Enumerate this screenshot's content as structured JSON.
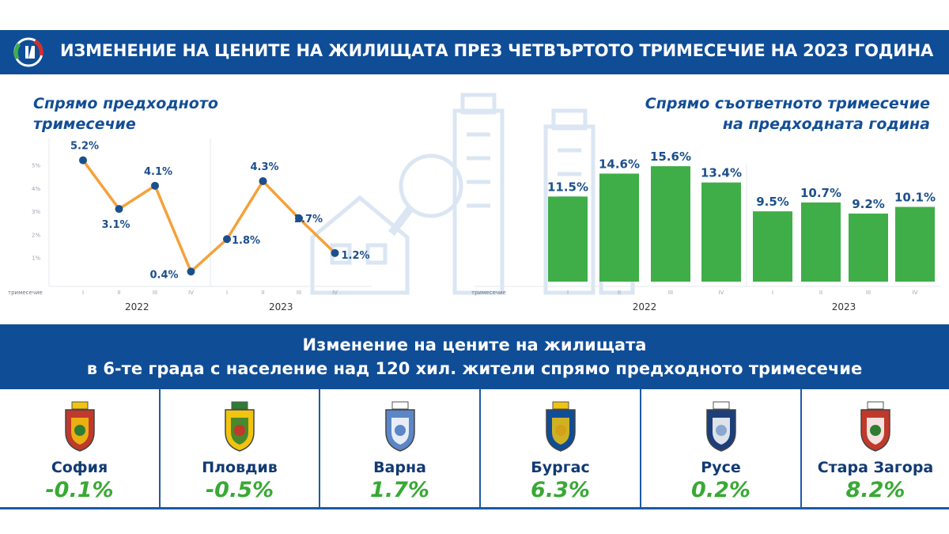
{
  "header": {
    "title": "ИЗМЕНЕНИЕ НА ЦЕНИТЕ НА ЖИЛИЩАТА ПРЕЗ ЧЕТВЪРТОТО ТРИМЕСЕЧИЕ НА 2023 ГОДИНА"
  },
  "colors": {
    "header_blue": "#0f4d97",
    "line_orange": "#f5a13a",
    "marker_blue": "#1c4f8c",
    "bar_green": "#3fae49",
    "value_green": "#39a935"
  },
  "chart_data": [
    {
      "type": "line",
      "title": "Спрямо предходното\nтримесечие",
      "title_lines": [
        "Спрямо предходното",
        "тримесечие"
      ],
      "xlabel": "тримесечие",
      "categories": [
        "I",
        "II",
        "III",
        "IV",
        "I",
        "II",
        "III",
        "IV"
      ],
      "groups": [
        {
          "label": "2022",
          "start": 0,
          "end": 3
        },
        {
          "label": "2023",
          "start": 4,
          "end": 7
        }
      ],
      "values": [
        5.2,
        3.1,
        4.1,
        0.4,
        1.8,
        4.3,
        2.7,
        1.2
      ],
      "data_labels": [
        "5.2%",
        "3.1%",
        "4.1%",
        "0.4%",
        "1.8%",
        "4.3%",
        "2.7%",
        "1.2%"
      ],
      "y_ticks": [
        "1%",
        "2%",
        "3%",
        "4%",
        "5%"
      ],
      "y_tick_values": [
        1,
        2,
        3,
        4,
        5
      ],
      "ylim": [
        0,
        5.8
      ],
      "grid": false
    },
    {
      "type": "bar",
      "title": "Спрямо съответното тримесечие\nна предходната година",
      "title_lines": [
        "Спрямо съответното тримесечие",
        "на предходната година"
      ],
      "xlabel": "тримесечие",
      "categories": [
        "I",
        "II",
        "III",
        "IV",
        "I",
        "II",
        "III",
        "IV"
      ],
      "groups": [
        {
          "label": "2022",
          "start": 0,
          "end": 3
        },
        {
          "label": "2023",
          "start": 4,
          "end": 7
        }
      ],
      "values": [
        11.5,
        14.6,
        15.6,
        13.4,
        9.5,
        10.7,
        9.2,
        10.1
      ],
      "data_labels": [
        "11.5%",
        "14.6%",
        "15.6%",
        "13.4%",
        "9.5%",
        "10.7%",
        "9.2%",
        "10.1%"
      ],
      "ylim": [
        0,
        17
      ],
      "grid": false
    },
    {
      "type": "table",
      "title_lines": [
        "Изменение на цените на жилищата",
        "в 6-те града с население над 120 хил. жители спрямо предходното тримесечие"
      ],
      "cities": [
        {
          "name": "София",
          "value": "-0.1%",
          "emblem": "sofia-coat-of-arms-icon"
        },
        {
          "name": "Пловдив",
          "value": "-0.5%",
          "emblem": "plovdiv-coat-of-arms-icon"
        },
        {
          "name": "Варна",
          "value": "1.7%",
          "emblem": "varna-coat-of-arms-icon"
        },
        {
          "name": "Бургас",
          "value": "6.3%",
          "emblem": "burgas-coat-of-arms-icon"
        },
        {
          "name": "Русе",
          "value": "0.2%",
          "emblem": "ruse-coat-of-arms-icon"
        },
        {
          "name": "Стара Загора",
          "value": "8.2%",
          "emblem": "stara-zagora-coat-of-arms-icon"
        }
      ]
    }
  ]
}
